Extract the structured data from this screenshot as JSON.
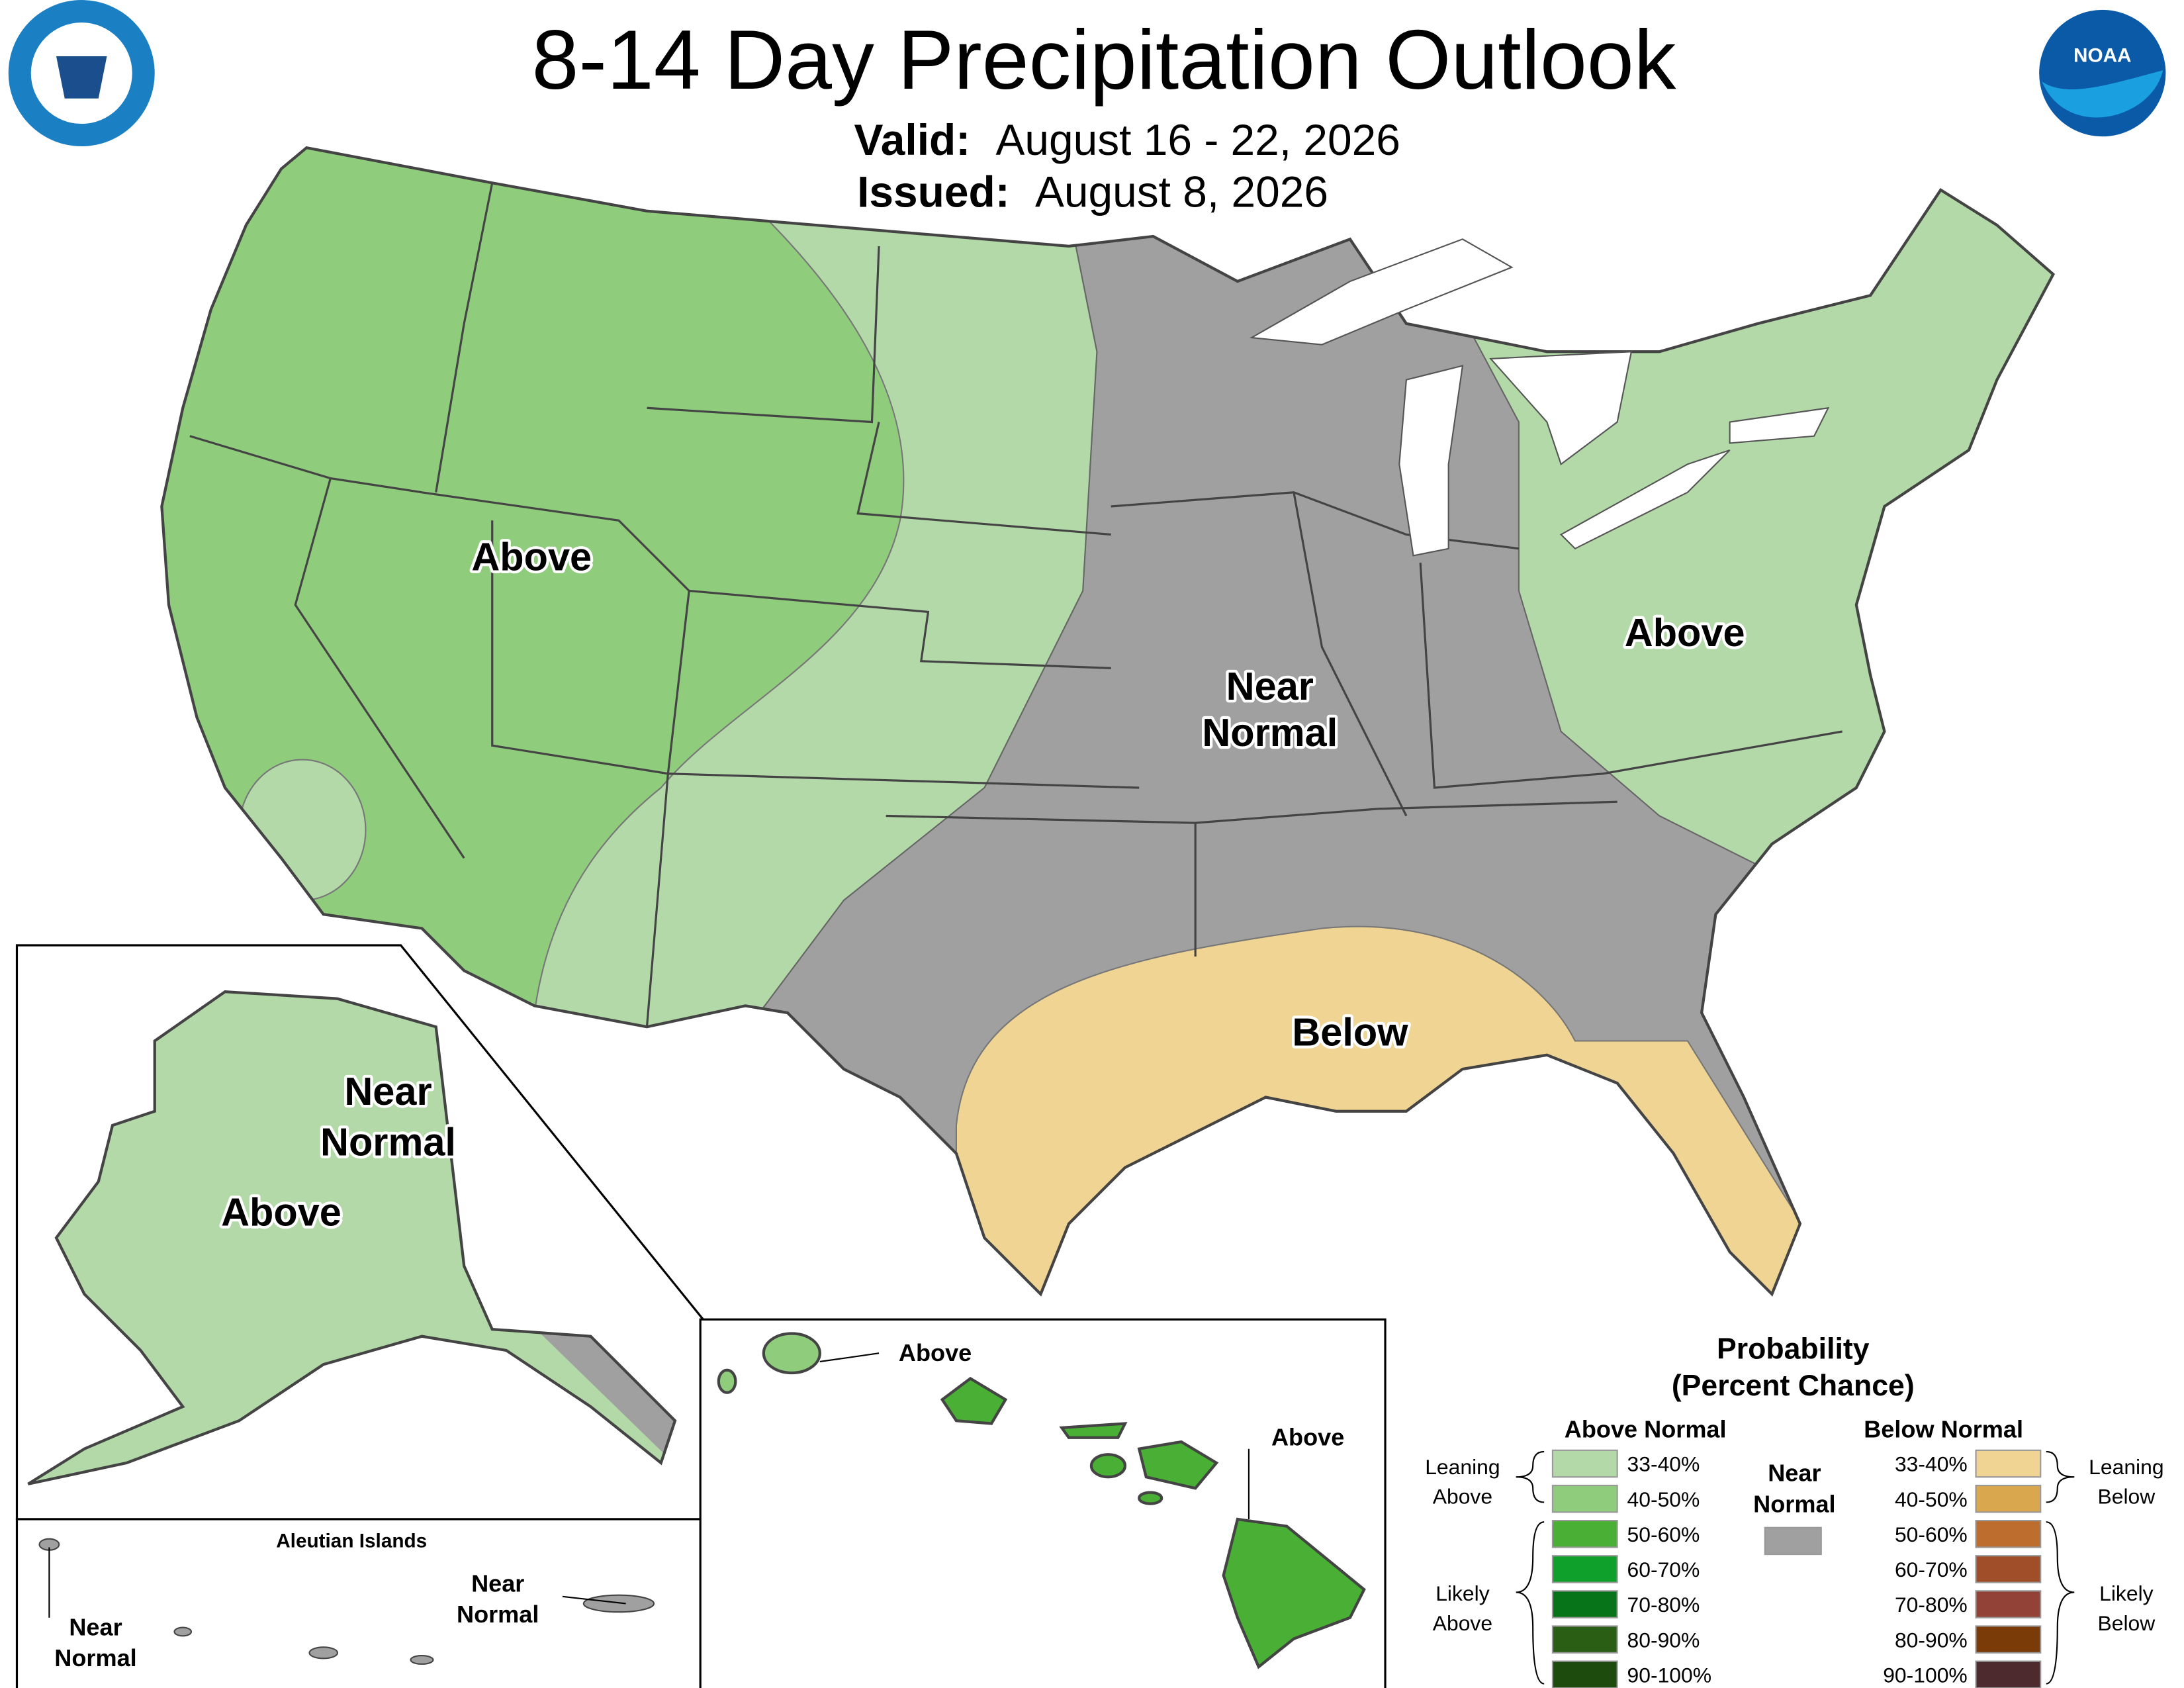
{
  "header": {
    "title": "8-14 Day Precipitation Outlook",
    "valid_label": "Valid:",
    "valid": "August 16 - 22, 2026",
    "issued_label": "Issued:",
    "issued": "August 8, 2026"
  },
  "logos": {
    "noaa": "NOAA"
  },
  "map_labels": [
    {
      "lines": [
        "Above"
      ]
    },
    {
      "lines": [
        "Above"
      ]
    },
    {
      "lines": [
        "Near",
        "Normal"
      ]
    },
    {
      "lines": [
        "Below"
      ]
    },
    {
      "lines": [
        "Near",
        "Normal"
      ]
    },
    {
      "lines": [
        "Above"
      ]
    },
    {
      "lines": [
        "Near",
        "Normal"
      ]
    },
    {
      "lines": [
        "Near",
        "Normal"
      ]
    },
    {
      "lines": [
        "Above"
      ]
    },
    {
      "lines": [
        "Above"
      ]
    }
  ],
  "aleutian_title": "Aleutian Islands",
  "legend": {
    "title": [
      "Probability",
      "(Percent Chance)"
    ],
    "above": {
      "header": "Above Normal",
      "entries": [
        {
          "label": "33-40%",
          "color": "#b3d9a9"
        },
        {
          "label": "40-50%",
          "color": "#8fcc7c"
        },
        {
          "label": "50-60%",
          "color": "#49b035"
        },
        {
          "label": "60-70%",
          "color": "#0ea02a"
        },
        {
          "label": "70-80%",
          "color": "#08741a"
        },
        {
          "label": "80-90%",
          "color": "#2b5e15"
        },
        {
          "label": "90-100%",
          "color": "#1d4a0d"
        }
      ]
    },
    "near": {
      "lines": [
        "Near",
        "Normal"
      ],
      "color": "#a0a0a0"
    },
    "below": {
      "header": "Below Normal",
      "entries": [
        {
          "label": "33-40%",
          "color": "#f0d493"
        },
        {
          "label": "40-50%",
          "color": "#d8a74e"
        },
        {
          "label": "50-60%",
          "color": "#bd6e2f"
        },
        {
          "label": "60-70%",
          "color": "#a04d2a"
        },
        {
          "label": "70-80%",
          "color": "#924236"
        },
        {
          "label": "80-90%",
          "color": "#7b3b08"
        },
        {
          "label": "90-100%",
          "color": "#4c2a2d"
        }
      ]
    },
    "brackets": {
      "leaning_above": [
        "Leaning",
        "Above"
      ],
      "likely_above": [
        "Likely",
        "Above"
      ],
      "leaning_below": [
        "Leaning",
        "Below"
      ],
      "likely_below": [
        "Likely",
        "Below"
      ]
    }
  }
}
